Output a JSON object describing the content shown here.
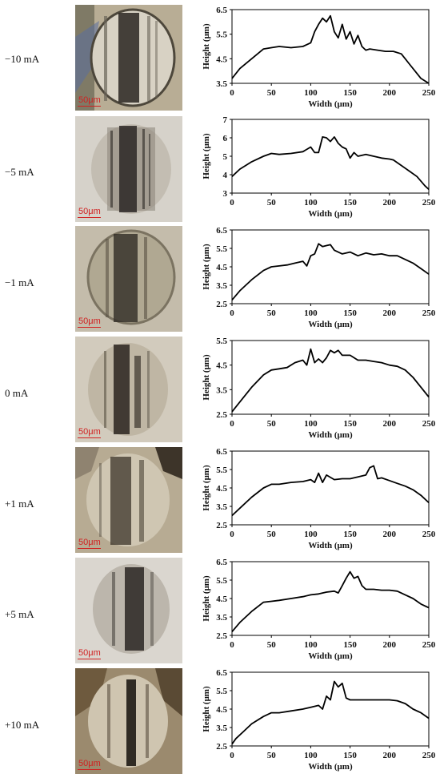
{
  "colors": {
    "line": "#000000",
    "scale": "#d12020",
    "micrograph_base": "#c9c2b4",
    "wear_dark": "#1d1a17"
  },
  "micro_scale_label": "50μm",
  "x_axis_label": "Width (μm)",
  "y_axis_label": "Height (μm)",
  "x_ticks": [
    "0",
    "50",
    "100",
    "150",
    "200",
    "250"
  ],
  "rows": [
    {
      "current": "−10 mA",
      "yticks": [
        "3.5",
        "4.5",
        "5.5",
        "6.5"
      ]
    },
    {
      "current": "−5 mA",
      "yticks": [
        "3",
        "4",
        "5",
        "6",
        "7"
      ]
    },
    {
      "current": "−1 mA",
      "yticks": [
        "2.5",
        "3.5",
        "4.5",
        "5.5",
        "6.5"
      ]
    },
    {
      "current": "0 mA",
      "yticks": [
        "2.5",
        "3.5",
        "4.5",
        "5.5"
      ]
    },
    {
      "current": "+1 mA",
      "yticks": [
        "2.5",
        "3.5",
        "4.5",
        "5.5",
        "6.5"
      ]
    },
    {
      "current": "+5 mA",
      "yticks": [
        "2.5",
        "3.5",
        "4.5",
        "5.5",
        "6.5"
      ]
    },
    {
      "current": "+10 mA",
      "yticks": [
        "2.5",
        "3.5",
        "4.5",
        "5.5",
        "6.5"
      ]
    }
  ],
  "chart_data": [
    {
      "type": "line",
      "xlabel": "Width (μm)",
      "ylabel": "Height (μm)",
      "xlim": [
        0,
        250
      ],
      "ylim": [
        3.5,
        6.5
      ],
      "x": [
        0,
        10,
        25,
        40,
        50,
        60,
        75,
        90,
        100,
        105,
        110,
        115,
        120,
        125,
        130,
        135,
        140,
        145,
        150,
        155,
        160,
        165,
        170,
        175,
        185,
        195,
        205,
        215,
        225,
        235,
        240,
        250
      ],
      "y": [
        3.7,
        4.1,
        4.5,
        4.9,
        4.95,
        5.0,
        4.95,
        5.0,
        5.15,
        5.6,
        5.9,
        6.15,
        6.0,
        6.25,
        5.6,
        5.35,
        5.9,
        5.3,
        5.6,
        5.1,
        5.45,
        5.0,
        4.85,
        4.9,
        4.85,
        4.8,
        4.8,
        4.7,
        4.3,
        3.9,
        3.7,
        3.5
      ]
    },
    {
      "type": "line",
      "xlabel": "Width (μm)",
      "ylabel": "Height (μm)",
      "xlim": [
        0,
        250
      ],
      "ylim": [
        3,
        7
      ],
      "x": [
        0,
        10,
        25,
        40,
        50,
        60,
        75,
        90,
        100,
        105,
        110,
        115,
        120,
        125,
        130,
        135,
        140,
        145,
        150,
        155,
        160,
        170,
        180,
        190,
        200,
        205,
        215,
        225,
        235,
        245,
        250
      ],
      "y": [
        3.9,
        4.3,
        4.7,
        5.0,
        5.15,
        5.1,
        5.15,
        5.25,
        5.5,
        5.2,
        5.2,
        6.05,
        6.0,
        5.8,
        6.05,
        5.7,
        5.5,
        5.4,
        4.9,
        5.2,
        5.0,
        5.1,
        5.0,
        4.9,
        4.85,
        4.8,
        4.5,
        4.2,
        3.9,
        3.4,
        3.2
      ]
    },
    {
      "type": "line",
      "xlabel": "Width (μm)",
      "ylabel": "Height (μm)",
      "xlim": [
        0,
        250
      ],
      "ylim": [
        2.5,
        6.5
      ],
      "x": [
        0,
        10,
        25,
        40,
        50,
        60,
        70,
        80,
        90,
        95,
        100,
        105,
        110,
        115,
        120,
        125,
        130,
        140,
        150,
        160,
        170,
        180,
        190,
        200,
        210,
        220,
        230,
        240,
        250
      ],
      "y": [
        2.7,
        3.2,
        3.8,
        4.3,
        4.5,
        4.55,
        4.6,
        4.7,
        4.8,
        4.55,
        5.1,
        5.2,
        5.75,
        5.6,
        5.65,
        5.7,
        5.4,
        5.2,
        5.3,
        5.1,
        5.25,
        5.15,
        5.2,
        5.1,
        5.1,
        4.9,
        4.7,
        4.4,
        4.1
      ]
    },
    {
      "type": "line",
      "xlabel": "Width (μm)",
      "ylabel": "Height (μm)",
      "xlim": [
        0,
        250
      ],
      "ylim": [
        2.5,
        5.5
      ],
      "x": [
        0,
        10,
        25,
        40,
        50,
        60,
        70,
        80,
        90,
        95,
        100,
        105,
        110,
        115,
        120,
        125,
        130,
        135,
        140,
        150,
        160,
        170,
        180,
        190,
        200,
        210,
        220,
        230,
        240,
        250
      ],
      "y": [
        2.6,
        3.0,
        3.6,
        4.1,
        4.3,
        4.35,
        4.4,
        4.6,
        4.7,
        4.5,
        5.15,
        4.6,
        4.75,
        4.6,
        4.8,
        5.1,
        5.0,
        5.1,
        4.9,
        4.9,
        4.7,
        4.7,
        4.65,
        4.6,
        4.5,
        4.45,
        4.3,
        4.0,
        3.6,
        3.2
      ]
    },
    {
      "type": "line",
      "xlabel": "Width (μm)",
      "ylabel": "Height (μm)",
      "xlim": [
        0,
        250
      ],
      "ylim": [
        2.5,
        6.5
      ],
      "x": [
        0,
        10,
        25,
        40,
        50,
        60,
        75,
        90,
        100,
        105,
        110,
        115,
        120,
        130,
        140,
        150,
        160,
        170,
        175,
        180,
        185,
        190,
        200,
        210,
        220,
        230,
        240,
        250
      ],
      "y": [
        3.0,
        3.4,
        4.0,
        4.5,
        4.7,
        4.7,
        4.8,
        4.85,
        4.95,
        4.8,
        5.3,
        4.8,
        5.2,
        4.95,
        5.0,
        5.0,
        5.1,
        5.2,
        5.6,
        5.7,
        5.0,
        5.05,
        4.9,
        4.75,
        4.6,
        4.4,
        4.1,
        3.7
      ]
    },
    {
      "type": "line",
      "xlabel": "Width (μm)",
      "ylabel": "Height (μm)",
      "xlim": [
        0,
        250
      ],
      "ylim": [
        2.5,
        6.5
      ],
      "x": [
        0,
        10,
        25,
        40,
        50,
        60,
        75,
        90,
        100,
        110,
        120,
        130,
        135,
        140,
        145,
        150,
        155,
        160,
        165,
        170,
        180,
        190,
        200,
        210,
        220,
        230,
        240,
        250
      ],
      "y": [
        2.7,
        3.2,
        3.8,
        4.3,
        4.35,
        4.4,
        4.5,
        4.6,
        4.7,
        4.75,
        4.85,
        4.9,
        4.8,
        5.2,
        5.6,
        5.95,
        5.6,
        5.7,
        5.2,
        5.0,
        5.0,
        4.95,
        4.95,
        4.9,
        4.7,
        4.5,
        4.2,
        4.0
      ]
    },
    {
      "type": "line",
      "xlabel": "Width (μm)",
      "ylabel": "Height (μm)",
      "xlim": [
        0,
        250
      ],
      "ylim": [
        2.5,
        6.5
      ],
      "x": [
        0,
        5,
        15,
        25,
        40,
        50,
        60,
        75,
        90,
        100,
        110,
        115,
        120,
        125,
        130,
        135,
        140,
        145,
        150,
        160,
        170,
        180,
        190,
        200,
        210,
        220,
        230,
        240,
        250
      ],
      "y": [
        2.6,
        2.9,
        3.3,
        3.7,
        4.1,
        4.3,
        4.3,
        4.4,
        4.5,
        4.6,
        4.7,
        4.5,
        5.2,
        5.0,
        6.0,
        5.7,
        5.9,
        5.1,
        5.0,
        5.0,
        5.0,
        5.0,
        5.0,
        5.0,
        4.95,
        4.8,
        4.5,
        4.3,
        4.0
      ]
    }
  ]
}
